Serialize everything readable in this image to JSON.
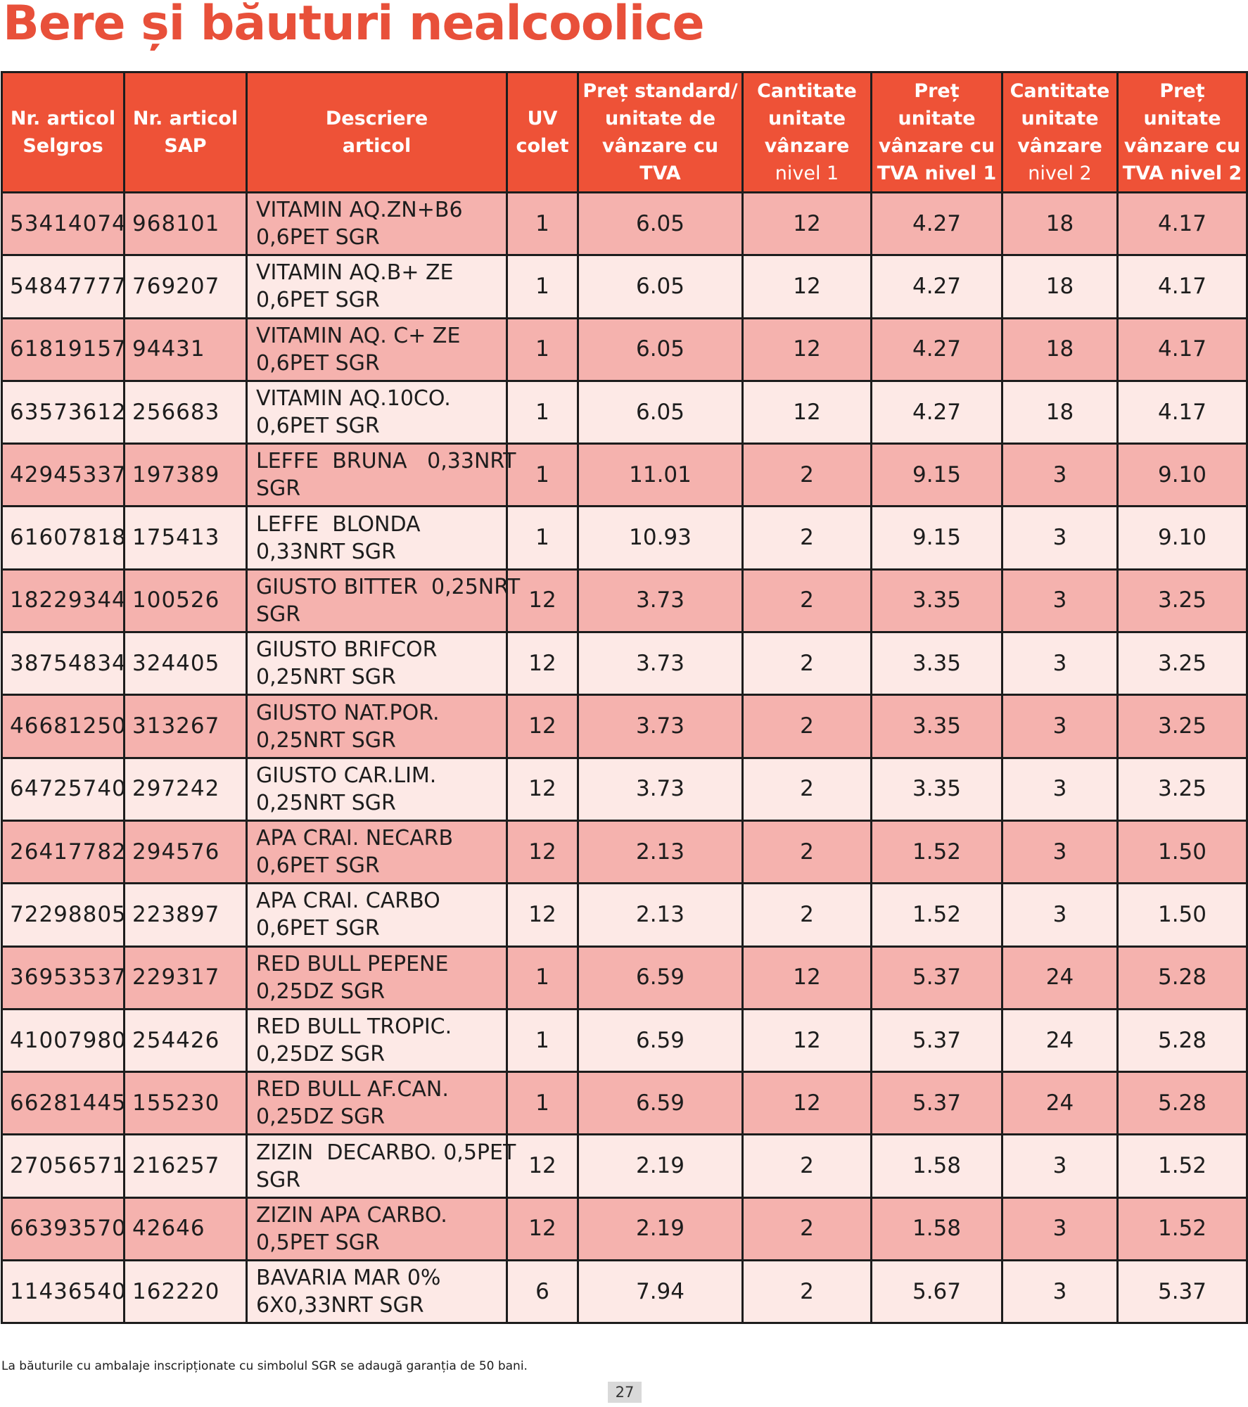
{
  "title": "Bere și băuturi nealcoolice",
  "table": {
    "headers": [
      [
        "Nr. articol",
        "Selgros"
      ],
      [
        "Nr. articol",
        "SAP"
      ],
      [
        "Descriere",
        "articol"
      ],
      [
        "UV",
        "colet"
      ],
      [
        "Preț standard/",
        "unitate de",
        "vânzare cu",
        "TVA"
      ],
      [
        "Cantitate",
        "unitate",
        "vânzare",
        "nivel 1"
      ],
      [
        "Preț",
        "unitate",
        "vânzare cu",
        "TVA nivel 1"
      ],
      [
        "Cantitate",
        "unitate",
        "vânzare",
        "nivel 2"
      ],
      [
        "Preț",
        "unitate",
        "vânzare cu",
        "TVA nivel 2"
      ]
    ],
    "rows": [
      {
        "selgros": "53414074",
        "sap": "968101",
        "desc": [
          "VITAMIN AQ.ZN+B6",
          "0,6PET SGR"
        ],
        "uv": "1",
        "price_std": "6.05",
        "qty1": "12",
        "price1": "4.27",
        "qty2": "18",
        "price2": "4.17"
      },
      {
        "selgros": "54847777",
        "sap": "769207",
        "desc": [
          "VITAMIN AQ.B+ ZE",
          "0,6PET SGR"
        ],
        "uv": "1",
        "price_std": "6.05",
        "qty1": "12",
        "price1": "4.27",
        "qty2": "18",
        "price2": "4.17"
      },
      {
        "selgros": "61819157",
        "sap": "94431",
        "desc": [
          "VITAMIN AQ. C+ ZE",
          "0,6PET SGR"
        ],
        "uv": "1",
        "price_std": "6.05",
        "qty1": "12",
        "price1": "4.27",
        "qty2": "18",
        "price2": "4.17"
      },
      {
        "selgros": "63573612",
        "sap": "256683",
        "desc": [
          "VITAMIN AQ.10CO.",
          "0,6PET SGR"
        ],
        "uv": "1",
        "price_std": "6.05",
        "qty1": "12",
        "price1": "4.27",
        "qty2": "18",
        "price2": "4.17"
      },
      {
        "selgros": "42945337",
        "sap": "197389",
        "desc": [
          "LEFFE  BRUNA   0,33NRT",
          "SGR"
        ],
        "uv": "1",
        "price_std": "11.01",
        "qty1": "2",
        "price1": "9.15",
        "qty2": "3",
        "price2": "9.10"
      },
      {
        "selgros": "61607818",
        "sap": "175413",
        "desc": [
          "LEFFE  BLONDA",
          "0,33NRT SGR"
        ],
        "uv": "1",
        "price_std": "10.93",
        "qty1": "2",
        "price1": "9.15",
        "qty2": "3",
        "price2": "9.10"
      },
      {
        "selgros": "18229344",
        "sap": "100526",
        "desc": [
          "GIUSTO BITTER  0,25NRT",
          "SGR"
        ],
        "uv": "12",
        "price_std": "3.73",
        "qty1": "2",
        "price1": "3.35",
        "qty2": "3",
        "price2": "3.25"
      },
      {
        "selgros": "38754834",
        "sap": "324405",
        "desc": [
          "GIUSTO BRIFCOR",
          "0,25NRT SGR"
        ],
        "uv": "12",
        "price_std": "3.73",
        "qty1": "2",
        "price1": "3.35",
        "qty2": "3",
        "price2": "3.25"
      },
      {
        "selgros": "46681250",
        "sap": "313267",
        "desc": [
          "GIUSTO NAT.POR.",
          "0,25NRT SGR"
        ],
        "uv": "12",
        "price_std": "3.73",
        "qty1": "2",
        "price1": "3.35",
        "qty2": "3",
        "price2": "3.25"
      },
      {
        "selgros": "64725740",
        "sap": "297242",
        "desc": [
          "GIUSTO CAR.LIM.",
          "0,25NRT SGR"
        ],
        "uv": "12",
        "price_std": "3.73",
        "qty1": "2",
        "price1": "3.35",
        "qty2": "3",
        "price2": "3.25"
      },
      {
        "selgros": "26417782",
        "sap": "294576",
        "desc": [
          "APA CRAI. NECARB",
          "0,6PET SGR"
        ],
        "uv": "12",
        "price_std": "2.13",
        "qty1": "2",
        "price1": "1.52",
        "qty2": "3",
        "price2": "1.50"
      },
      {
        "selgros": "72298805",
        "sap": "223897",
        "desc": [
          "APA CRAI. CARBO",
          "0,6PET SGR"
        ],
        "uv": "12",
        "price_std": "2.13",
        "qty1": "2",
        "price1": "1.52",
        "qty2": "3",
        "price2": "1.50"
      },
      {
        "selgros": "36953537",
        "sap": "229317",
        "desc": [
          "RED BULL PEPENE",
          "0,25DZ SGR"
        ],
        "uv": "1",
        "price_std": "6.59",
        "qty1": "12",
        "price1": "5.37",
        "qty2": "24",
        "price2": "5.28"
      },
      {
        "selgros": "41007980",
        "sap": "254426",
        "desc": [
          "RED BULL TROPIC.",
          "0,25DZ SGR"
        ],
        "uv": "1",
        "price_std": "6.59",
        "qty1": "12",
        "price1": "5.37",
        "qty2": "24",
        "price2": "5.28"
      },
      {
        "selgros": "66281445",
        "sap": "155230",
        "desc": [
          "RED BULL AF.CAN.",
          "0,25DZ SGR"
        ],
        "uv": "1",
        "price_std": "6.59",
        "qty1": "12",
        "price1": "5.37",
        "qty2": "24",
        "price2": "5.28"
      },
      {
        "selgros": "27056571",
        "sap": "216257",
        "desc": [
          "ZIZIN  DECARBO. 0,5PET",
          "SGR"
        ],
        "uv": "12",
        "price_std": "2.19",
        "qty1": "2",
        "price1": "1.58",
        "qty2": "3",
        "price2": "1.52"
      },
      {
        "selgros": "66393570",
        "sap": "42646",
        "desc": [
          "ZIZIN APA CARBO.",
          "0,5PET SGR"
        ],
        "uv": "12",
        "price_std": "2.19",
        "qty1": "2",
        "price1": "1.58",
        "qty2": "3",
        "price2": "1.52"
      },
      {
        "selgros": "11436540",
        "sap": "162220",
        "desc": [
          "BAVARIA MAR 0%",
          "6X0,33NRT SGR"
        ],
        "uv": "6",
        "price_std": "7.94",
        "qty1": "2",
        "price1": "5.67",
        "qty2": "3",
        "price2": "5.37"
      }
    ]
  },
  "footnote": "La băuturile cu ambalaje inscripționate cu simbolul SGR se adaugă garanția de 50 bani.",
  "page_number": "27",
  "colors": {
    "accent": "#ee5237",
    "title": "#e8503a",
    "row_odd": "#f5b2ae",
    "row_even": "#fde9e6"
  }
}
